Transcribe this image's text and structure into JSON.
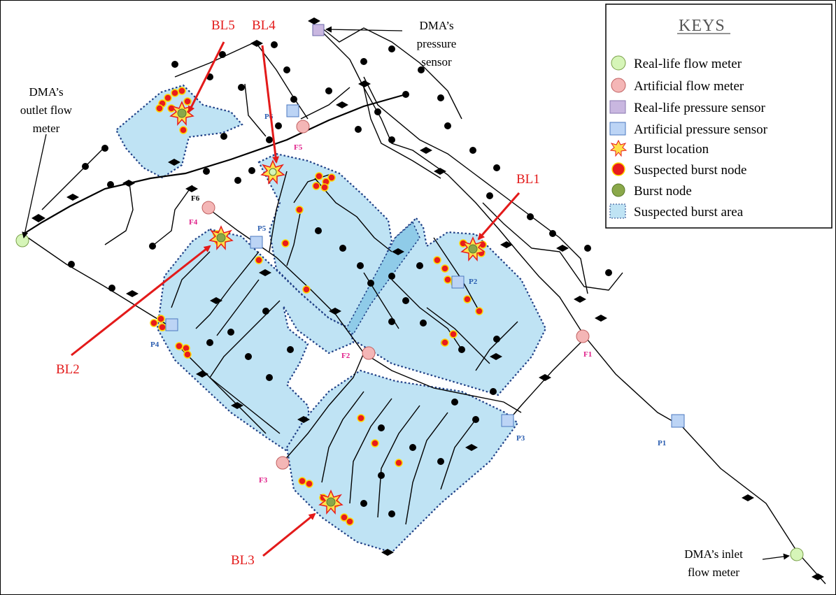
{
  "labels": {
    "bl1": "BL1",
    "bl2": "BL2",
    "bl3": "BL3",
    "bl4": "BL4",
    "bl5": "BL5",
    "pressure_sensor_1": "DMA’s",
    "pressure_sensor_2": "pressure",
    "pressure_sensor_3": "sensor",
    "outlet_1": "DMA’s",
    "outlet_2": "outlet flow",
    "outlet_3": "meter",
    "inlet_1": "DMA’s inlet",
    "inlet_2": "flow meter"
  },
  "sensors": {
    "p1": "P1",
    "p2": "P2",
    "p3": "P3",
    "p4": "P4",
    "p5": "P5",
    "p6": "P6"
  },
  "meters": {
    "f1": "F1",
    "f2": "F2",
    "f3": "F3",
    "f4": "F4",
    "f5": "F5",
    "f6": "F6"
  },
  "keys": {
    "title": "KEYS",
    "items": [
      "Real-life flow meter",
      "Artificial flow meter",
      "Real-life pressure sensor",
      "Artificial pressure sensor",
      "Burst location",
      "Suspected burst node",
      "Burst node",
      "Suspected burst area"
    ]
  },
  "colors": {
    "real_flow_meter": "#d6f5b8",
    "artificial_flow_meter": "#f4b6b6",
    "real_pressure_sensor": "#c9b7e0",
    "artificial_pressure_sensor": "#bcd4f5",
    "burst_location": "#ffe14a",
    "suspected_burst_node": "#e81c1c",
    "burst_node": "#8aa84a",
    "suspected_burst_area": "#bfe3f4",
    "annotation_arrow": "#e31a1a"
  }
}
